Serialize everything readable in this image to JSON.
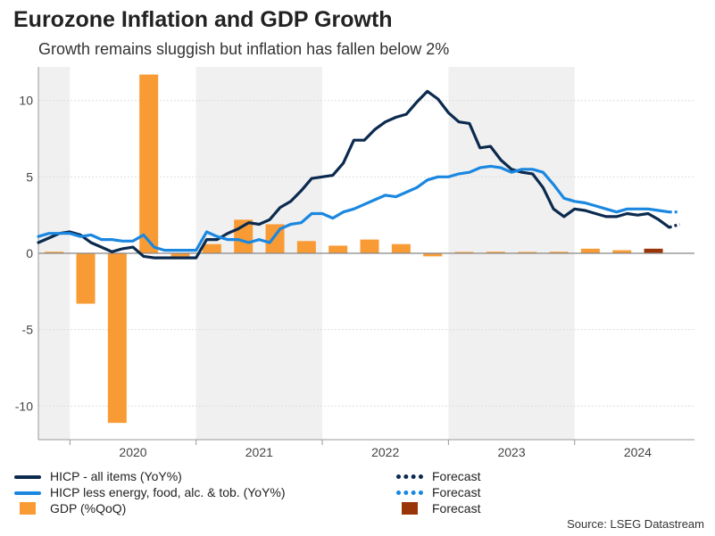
{
  "title": "Eurozone Inflation and GDP Growth",
  "subtitle": "Growth remains sluggish but inflation has fallen below 2%",
  "source": "Source: LSEG Datastream",
  "colors": {
    "hicp": "#0b2a4e",
    "core": "#1a87e0",
    "gdp": "#f99b35",
    "gdp_forecast": "#9a3409",
    "shade": "#f0f0f0",
    "grid": "#dddddd"
  },
  "legend": {
    "hicp": "HICP - all items (YoY%)",
    "core": "HICP less energy, food, alc. & tob. (YoY%)",
    "gdp": "GDP (%QoQ)",
    "forecast_hicp": "Forecast",
    "forecast_core": "Forecast",
    "forecast_gdp": "Forecast"
  },
  "chart_data": {
    "type": "line+bar",
    "title": "Eurozone Inflation and GDP Growth",
    "subtitle": "Growth remains sluggish but inflation has fallen below 2%",
    "x_range": [
      2019.75,
      2024.95
    ],
    "ylim": [
      -12.2,
      12.2
    ],
    "y_ticks": [
      -10,
      -5,
      0,
      5,
      10
    ],
    "x_tick_labels": [
      "2020",
      "2021",
      "2022",
      "2023",
      "2024"
    ],
    "x_tick_positions": [
      2020.5,
      2021.5,
      2022.5,
      2023.5,
      2024.5
    ],
    "year_boundaries": [
      2020,
      2021,
      2022,
      2023,
      2024
    ],
    "shaded_years": [
      [
        2019.75,
        2020
      ],
      [
        2021,
        2022
      ],
      [
        2023,
        2024
      ]
    ],
    "series": [
      {
        "name": "HICP - all items (YoY%)",
        "kind": "line",
        "start": 2019.75,
        "step": 0.08333,
        "values": [
          0.7,
          1.0,
          1.3,
          1.4,
          1.2,
          0.7,
          0.4,
          0.1,
          0.3,
          0.4,
          -0.2,
          -0.3,
          -0.3,
          -0.3,
          -0.3,
          -0.3,
          0.9,
          0.9,
          1.3,
          1.6,
          2.0,
          1.9,
          2.2,
          3.0,
          3.4,
          4.1,
          4.9,
          5.0,
          5.1,
          5.9,
          7.4,
          7.4,
          8.1,
          8.6,
          8.9,
          9.1,
          9.9,
          10.6,
          10.1,
          9.2,
          8.6,
          8.5,
          6.9,
          7.0,
          6.1,
          5.5,
          5.3,
          5.2,
          4.3,
          2.9,
          2.4,
          2.9,
          2.8,
          2.6,
          2.4,
          2.4,
          2.6,
          2.5,
          2.6,
          2.2,
          1.7
        ],
        "forecast": [
          1.7,
          1.9
        ]
      },
      {
        "name": "HICP less energy, food, alc. & tob. (YoY%)",
        "kind": "line",
        "start": 2019.75,
        "step": 0.08333,
        "values": [
          1.1,
          1.3,
          1.3,
          1.3,
          1.1,
          1.2,
          0.9,
          0.9,
          0.8,
          0.8,
          1.2,
          0.4,
          0.2,
          0.2,
          0.2,
          0.2,
          1.4,
          1.1,
          0.9,
          0.9,
          0.7,
          0.9,
          0.7,
          1.6,
          1.9,
          2.0,
          2.6,
          2.6,
          2.3,
          2.7,
          2.9,
          3.2,
          3.5,
          3.8,
          3.7,
          4.0,
          4.3,
          4.8,
          5.0,
          5.0,
          5.2,
          5.3,
          5.6,
          5.7,
          5.6,
          5.3,
          5.5,
          5.5,
          5.3,
          4.5,
          3.6,
          3.4,
          3.3,
          3.1,
          2.9,
          2.7,
          2.9,
          2.9,
          2.9,
          2.8,
          2.7
        ],
        "forecast": [
          2.7,
          2.7
        ]
      },
      {
        "name": "GDP (%QoQ)",
        "kind": "bar",
        "start": 2019.875,
        "step": 0.25,
        "values": [
          0.1,
          -3.3,
          -11.1,
          11.7,
          -0.3,
          0.6,
          2.2,
          1.9,
          0.8,
          0.5,
          0.9,
          0.6,
          -0.2,
          0.0,
          0.1,
          0.0,
          0.1,
          0.3,
          0.2,
          0.3
        ],
        "forecast_index": 19
      }
    ]
  }
}
